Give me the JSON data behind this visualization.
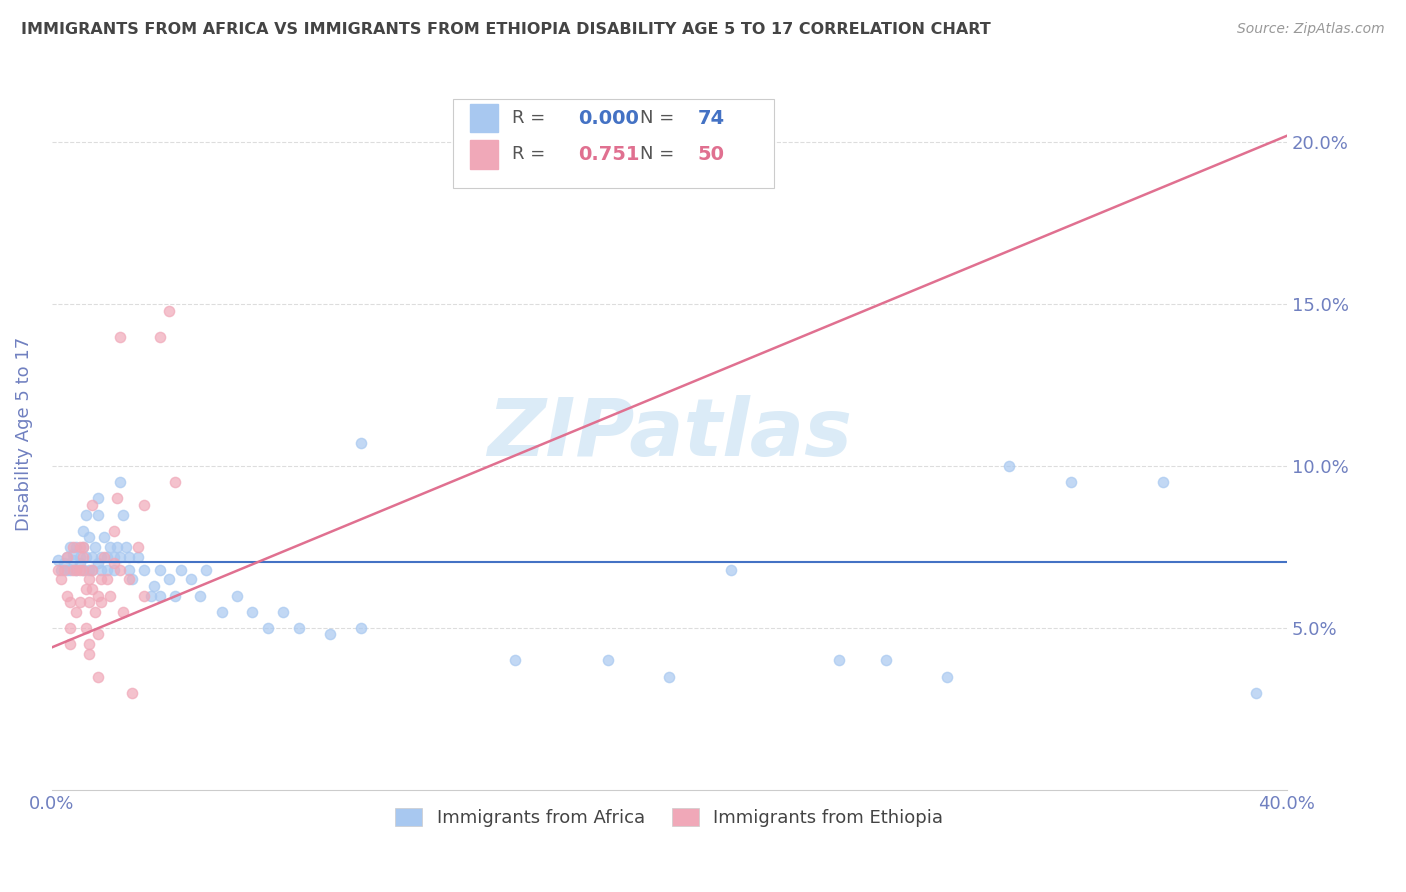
{
  "title": "IMMIGRANTS FROM AFRICA VS IMMIGRANTS FROM ETHIOPIA DISABILITY AGE 5 TO 17 CORRELATION CHART",
  "source": "Source: ZipAtlas.com",
  "ylabel": "Disability Age 5 to 17",
  "xlim": [
    0.0,
    0.4
  ],
  "ylim": [
    0.0,
    0.22
  ],
  "xticks": [
    0.0,
    0.05,
    0.1,
    0.15,
    0.2,
    0.25,
    0.3,
    0.35,
    0.4
  ],
  "yticks": [
    0.05,
    0.1,
    0.15,
    0.2
  ],
  "yticklabels": [
    "5.0%",
    "10.0%",
    "15.0%",
    "20.0%"
  ],
  "africa_color": "#a8c8f0",
  "africa_line_color": "#4472c4",
  "ethiopia_color": "#f0a8b8",
  "ethiopia_line_color": "#e07090",
  "africa_R": "0.000",
  "africa_N": "74",
  "ethiopia_R": "0.751",
  "ethiopia_N": "50",
  "legend_africa_label": "Immigrants from Africa",
  "legend_ethiopia_label": "Immigrants from Ethiopia",
  "watermark": "ZIPatlas",
  "background_color": "#ffffff",
  "grid_color": "#dddddd",
  "title_color": "#444444",
  "axis_label_color": "#7080c0",
  "tick_color": "#7080c0",
  "africa_line_y": 0.0705,
  "ethiopia_line_x_start": 0.0,
  "ethiopia_line_y_start": 0.044,
  "ethiopia_line_x_end": 0.4,
  "ethiopia_line_y_end": 0.202,
  "africa_scatter": [
    [
      0.002,
      0.071
    ],
    [
      0.003,
      0.068
    ],
    [
      0.004,
      0.07
    ],
    [
      0.005,
      0.072
    ],
    [
      0.005,
      0.068
    ],
    [
      0.006,
      0.075
    ],
    [
      0.006,
      0.068
    ],
    [
      0.007,
      0.071
    ],
    [
      0.007,
      0.073
    ],
    [
      0.008,
      0.075
    ],
    [
      0.008,
      0.068
    ],
    [
      0.009,
      0.072
    ],
    [
      0.009,
      0.07
    ],
    [
      0.01,
      0.08
    ],
    [
      0.01,
      0.075
    ],
    [
      0.01,
      0.068
    ],
    [
      0.011,
      0.072
    ],
    [
      0.011,
      0.085
    ],
    [
      0.012,
      0.078
    ],
    [
      0.012,
      0.068
    ],
    [
      0.013,
      0.072
    ],
    [
      0.013,
      0.068
    ],
    [
      0.014,
      0.075
    ],
    [
      0.015,
      0.09
    ],
    [
      0.015,
      0.085
    ],
    [
      0.015,
      0.07
    ],
    [
      0.016,
      0.072
    ],
    [
      0.016,
      0.068
    ],
    [
      0.017,
      0.078
    ],
    [
      0.018,
      0.072
    ],
    [
      0.018,
      0.068
    ],
    [
      0.019,
      0.075
    ],
    [
      0.02,
      0.072
    ],
    [
      0.02,
      0.068
    ],
    [
      0.021,
      0.075
    ],
    [
      0.022,
      0.072
    ],
    [
      0.022,
      0.095
    ],
    [
      0.023,
      0.085
    ],
    [
      0.024,
      0.075
    ],
    [
      0.025,
      0.072
    ],
    [
      0.025,
      0.068
    ],
    [
      0.026,
      0.065
    ],
    [
      0.028,
      0.072
    ],
    [
      0.03,
      0.068
    ],
    [
      0.032,
      0.06
    ],
    [
      0.033,
      0.063
    ],
    [
      0.035,
      0.068
    ],
    [
      0.035,
      0.06
    ],
    [
      0.038,
      0.065
    ],
    [
      0.04,
      0.06
    ],
    [
      0.042,
      0.068
    ],
    [
      0.045,
      0.065
    ],
    [
      0.048,
      0.06
    ],
    [
      0.05,
      0.068
    ],
    [
      0.055,
      0.055
    ],
    [
      0.06,
      0.06
    ],
    [
      0.065,
      0.055
    ],
    [
      0.07,
      0.05
    ],
    [
      0.075,
      0.055
    ],
    [
      0.08,
      0.05
    ],
    [
      0.09,
      0.048
    ],
    [
      0.1,
      0.05
    ],
    [
      0.15,
      0.04
    ],
    [
      0.18,
      0.04
    ],
    [
      0.2,
      0.035
    ],
    [
      0.22,
      0.068
    ],
    [
      0.255,
      0.04
    ],
    [
      0.27,
      0.04
    ],
    [
      0.29,
      0.035
    ],
    [
      0.31,
      0.1
    ],
    [
      0.33,
      0.095
    ],
    [
      0.36,
      0.095
    ],
    [
      0.39,
      0.03
    ],
    [
      0.1,
      0.107
    ]
  ],
  "ethiopia_scatter": [
    [
      0.002,
      0.068
    ],
    [
      0.003,
      0.065
    ],
    [
      0.004,
      0.068
    ],
    [
      0.005,
      0.072
    ],
    [
      0.005,
      0.06
    ],
    [
      0.006,
      0.058
    ],
    [
      0.006,
      0.05
    ],
    [
      0.006,
      0.045
    ],
    [
      0.007,
      0.068
    ],
    [
      0.007,
      0.075
    ],
    [
      0.008,
      0.068
    ],
    [
      0.008,
      0.055
    ],
    [
      0.009,
      0.068
    ],
    [
      0.009,
      0.075
    ],
    [
      0.009,
      0.058
    ],
    [
      0.01,
      0.075
    ],
    [
      0.01,
      0.068
    ],
    [
      0.01,
      0.072
    ],
    [
      0.011,
      0.062
    ],
    [
      0.011,
      0.05
    ],
    [
      0.012,
      0.065
    ],
    [
      0.012,
      0.058
    ],
    [
      0.012,
      0.045
    ],
    [
      0.012,
      0.042
    ],
    [
      0.013,
      0.068
    ],
    [
      0.013,
      0.062
    ],
    [
      0.013,
      0.088
    ],
    [
      0.014,
      0.055
    ],
    [
      0.015,
      0.06
    ],
    [
      0.015,
      0.048
    ],
    [
      0.015,
      0.035
    ],
    [
      0.016,
      0.058
    ],
    [
      0.016,
      0.065
    ],
    [
      0.017,
      0.072
    ],
    [
      0.018,
      0.065
    ],
    [
      0.019,
      0.06
    ],
    [
      0.02,
      0.07
    ],
    [
      0.02,
      0.08
    ],
    [
      0.021,
      0.09
    ],
    [
      0.022,
      0.14
    ],
    [
      0.022,
      0.068
    ],
    [
      0.023,
      0.055
    ],
    [
      0.025,
      0.065
    ],
    [
      0.026,
      0.03
    ],
    [
      0.028,
      0.075
    ],
    [
      0.03,
      0.088
    ],
    [
      0.03,
      0.06
    ],
    [
      0.035,
      0.14
    ],
    [
      0.038,
      0.148
    ],
    [
      0.04,
      0.095
    ]
  ]
}
